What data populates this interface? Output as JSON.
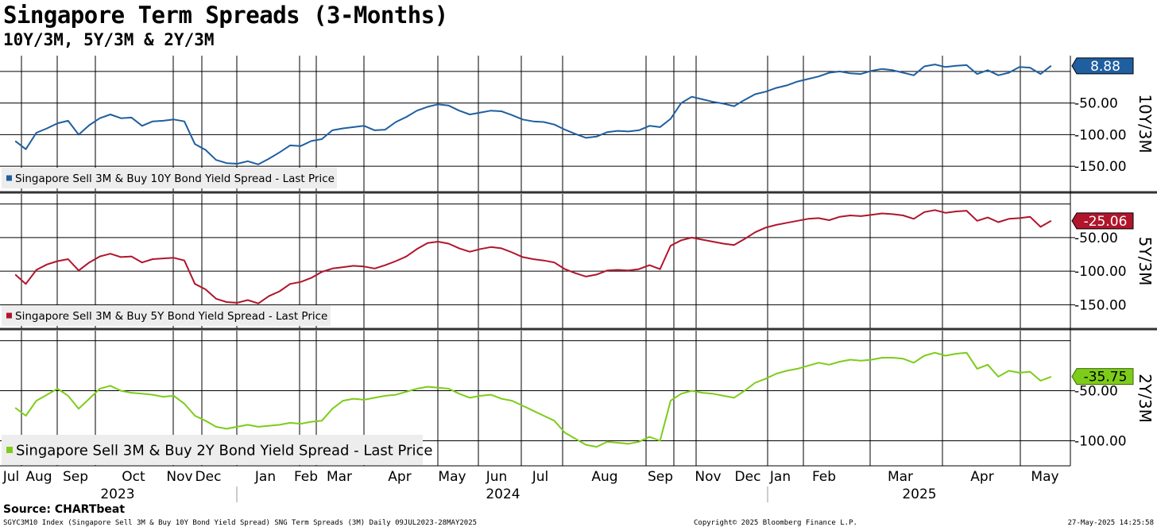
{
  "title": "Singapore Term Spreads (3-Months)",
  "subtitle": "10Y/3M, 5Y/3M & 2Y/3M",
  "source": "Source: CHARTbeat",
  "footer": {
    "left": "SGYC3M10 Index (Singapore Sell 3M & Buy 10Y Bond Yield Spread) SNG Term Spreads (3M)  Daily 09JUL2023-28MAY2025",
    "center": "Copyright© 2025 Bloomberg Finance L.P.",
    "right": "27-May-2025 14:25:58"
  },
  "colors": {
    "10Y/3M": "#1f5fa0",
    "5Y/3M": "#b0152c",
    "2Y/3M": "#7dcc1a"
  },
  "chart_data": {
    "type": "line",
    "x_axis": {
      "months": [
        "Jul",
        "Aug",
        "Sep",
        "Oct",
        "Nov",
        "Dec",
        "Jan",
        "Feb",
        "Mar",
        "Apr",
        "May",
        "Jun",
        "Jul",
        "Aug",
        "Sep",
        "Nov",
        "Dec",
        "Jan",
        "Feb",
        "Mar",
        "Apr",
        "May"
      ],
      "years": [
        "2023",
        "2024",
        "2025"
      ]
    },
    "x_dates": [
      "2023-07-09",
      "2023-07-16",
      "2023-07-23",
      "2023-07-30",
      "2023-08-06",
      "2023-08-13",
      "2023-08-20",
      "2023-08-27",
      "2023-09-03",
      "2023-09-10",
      "2023-09-17",
      "2023-09-24",
      "2023-10-01",
      "2023-10-08",
      "2023-10-15",
      "2023-10-22",
      "2023-10-29",
      "2023-11-05",
      "2023-11-12",
      "2023-11-19",
      "2023-11-26",
      "2023-12-03",
      "2023-12-10",
      "2023-12-17",
      "2023-12-24",
      "2023-12-31",
      "2024-01-07",
      "2024-01-14",
      "2024-01-21",
      "2024-01-28",
      "2024-02-04",
      "2024-02-11",
      "2024-02-18",
      "2024-02-25",
      "2024-03-03",
      "2024-03-10",
      "2024-03-17",
      "2024-03-24",
      "2024-03-31",
      "2024-04-07",
      "2024-04-14",
      "2024-04-21",
      "2024-04-28",
      "2024-05-05",
      "2024-05-12",
      "2024-05-19",
      "2024-05-26",
      "2024-06-02",
      "2024-06-09",
      "2024-06-16",
      "2024-06-23",
      "2024-06-30",
      "2024-07-07",
      "2024-07-14",
      "2024-07-21",
      "2024-07-28",
      "2024-08-04",
      "2024-08-11",
      "2024-08-18",
      "2024-08-25",
      "2024-09-01",
      "2024-09-08",
      "2024-09-15",
      "2024-09-22",
      "2024-09-29",
      "2024-10-06",
      "2024-10-13",
      "2024-10-20",
      "2024-10-27",
      "2024-11-03",
      "2024-11-10",
      "2024-11-17",
      "2024-11-24",
      "2024-12-01",
      "2024-12-08",
      "2024-12-15",
      "2024-12-22",
      "2024-12-29",
      "2025-01-05",
      "2025-01-12",
      "2025-01-19",
      "2025-01-26",
      "2025-02-02",
      "2025-02-09",
      "2025-02-16",
      "2025-02-23",
      "2025-03-02",
      "2025-03-09",
      "2025-03-16",
      "2025-03-23",
      "2025-03-30",
      "2025-04-06",
      "2025-04-13",
      "2025-04-20",
      "2025-04-27",
      "2025-05-04",
      "2025-05-11",
      "2025-05-18",
      "2025-05-25"
    ],
    "panels": [
      {
        "name": "10Y/3M",
        "legend": "Singapore Sell 3M & Buy 10Y Bond Yield Spread - Last Price",
        "last_value": "8.88",
        "y_ticks": [
          "-50.00",
          "-100.00",
          "-150.00"
        ],
        "ylim": [
          -190,
          25
        ],
        "values": [
          -110,
          -123,
          -97,
          -90,
          -82,
          -78,
          -100,
          -85,
          -74,
          -68,
          -74,
          -73,
          -86,
          -79,
          -78,
          -76,
          -79,
          -115,
          -124,
          -140,
          -145,
          -146,
          -142,
          -147,
          -138,
          -128,
          -117,
          -118,
          -110,
          -107,
          -93,
          -90,
          -88,
          -86,
          -93,
          -92,
          -80,
          -72,
          -62,
          -56,
          -52,
          -54,
          -62,
          -68,
          -65,
          -62,
          -63,
          -69,
          -76,
          -79,
          -80,
          -84,
          -92,
          -99,
          -105,
          -103,
          -96,
          -94,
          -95,
          -93,
          -86,
          -88,
          -75,
          -50,
          -40,
          -44,
          -48,
          -51,
          -55,
          -45,
          -36,
          -32,
          -26,
          -22,
          -16,
          -12,
          -8,
          -2,
          0,
          -3,
          -4,
          1,
          4,
          2,
          -2,
          -6,
          8,
          11,
          7,
          9,
          10,
          -4,
          2,
          -6,
          -2,
          7,
          6,
          -4,
          9
        ]
      },
      {
        "name": "5Y/3M",
        "legend": "Singapore Sell 3M & Buy 5Y Bond Yield Spread - Last Price",
        "last_value": "-25.06",
        "y_ticks": [
          "-50.00",
          "-100.00",
          "-150.00"
        ],
        "ylim": [
          -185,
          15
        ],
        "values": [
          -105,
          -119,
          -98,
          -90,
          -85,
          -82,
          -99,
          -87,
          -78,
          -74,
          -79,
          -78,
          -87,
          -82,
          -81,
          -80,
          -84,
          -119,
          -127,
          -141,
          -146,
          -147,
          -143,
          -148,
          -137,
          -130,
          -119,
          -116,
          -110,
          -101,
          -96,
          -94,
          -92,
          -93,
          -96,
          -91,
          -85,
          -78,
          -67,
          -58,
          -56,
          -59,
          -66,
          -71,
          -67,
          -64,
          -66,
          -72,
          -79,
          -82,
          -84,
          -87,
          -97,
          -103,
          -108,
          -105,
          -99,
          -98,
          -99,
          -97,
          -91,
          -97,
          -62,
          -54,
          -50,
          -53,
          -56,
          -59,
          -61,
          -52,
          -42,
          -35,
          -31,
          -28,
          -25,
          -22,
          -21,
          -24,
          -19,
          -17,
          -18,
          -16,
          -14,
          -15,
          -17,
          -22,
          -12,
          -9,
          -13,
          -11,
          -10,
          -25,
          -20,
          -27,
          -22,
          -21,
          -19,
          -34,
          -25
        ]
      },
      {
        "name": "2Y/3M",
        "legend": "Singapore Sell 3M & Buy 2Y Bond Yield Spread - Last Price",
        "last_value": "-35.75",
        "y_ticks": [
          "-50.00",
          "-100.00"
        ],
        "ylim": [
          -125,
          10
        ],
        "values": [
          -67,
          -75,
          -60,
          -54,
          -48,
          -55,
          -68,
          -58,
          -48,
          -45,
          -50,
          -52,
          -53,
          -54,
          -56,
          -55,
          -63,
          -75,
          -80,
          -86,
          -88,
          -86,
          -84,
          -86,
          -85,
          -84,
          -82,
          -83,
          -81,
          -80,
          -68,
          -60,
          -58,
          -59,
          -57,
          -55,
          -54,
          -51,
          -48,
          -46,
          -47,
          -48,
          -53,
          -57,
          -55,
          -54,
          -58,
          -60,
          -65,
          -70,
          -75,
          -80,
          -92,
          -98,
          -104,
          -106,
          -101,
          -102,
          -103,
          -101,
          -96,
          -100,
          -60,
          -53,
          -50,
          -52,
          -53,
          -55,
          -57,
          -50,
          -42,
          -38,
          -33,
          -30,
          -28,
          -25,
          -22,
          -24,
          -21,
          -19,
          -20,
          -19,
          -17,
          -17,
          -18,
          -22,
          -15,
          -12,
          -15,
          -13,
          -12,
          -28,
          -24,
          -36,
          -30,
          -32,
          -31,
          -40,
          -36
        ]
      }
    ]
  }
}
